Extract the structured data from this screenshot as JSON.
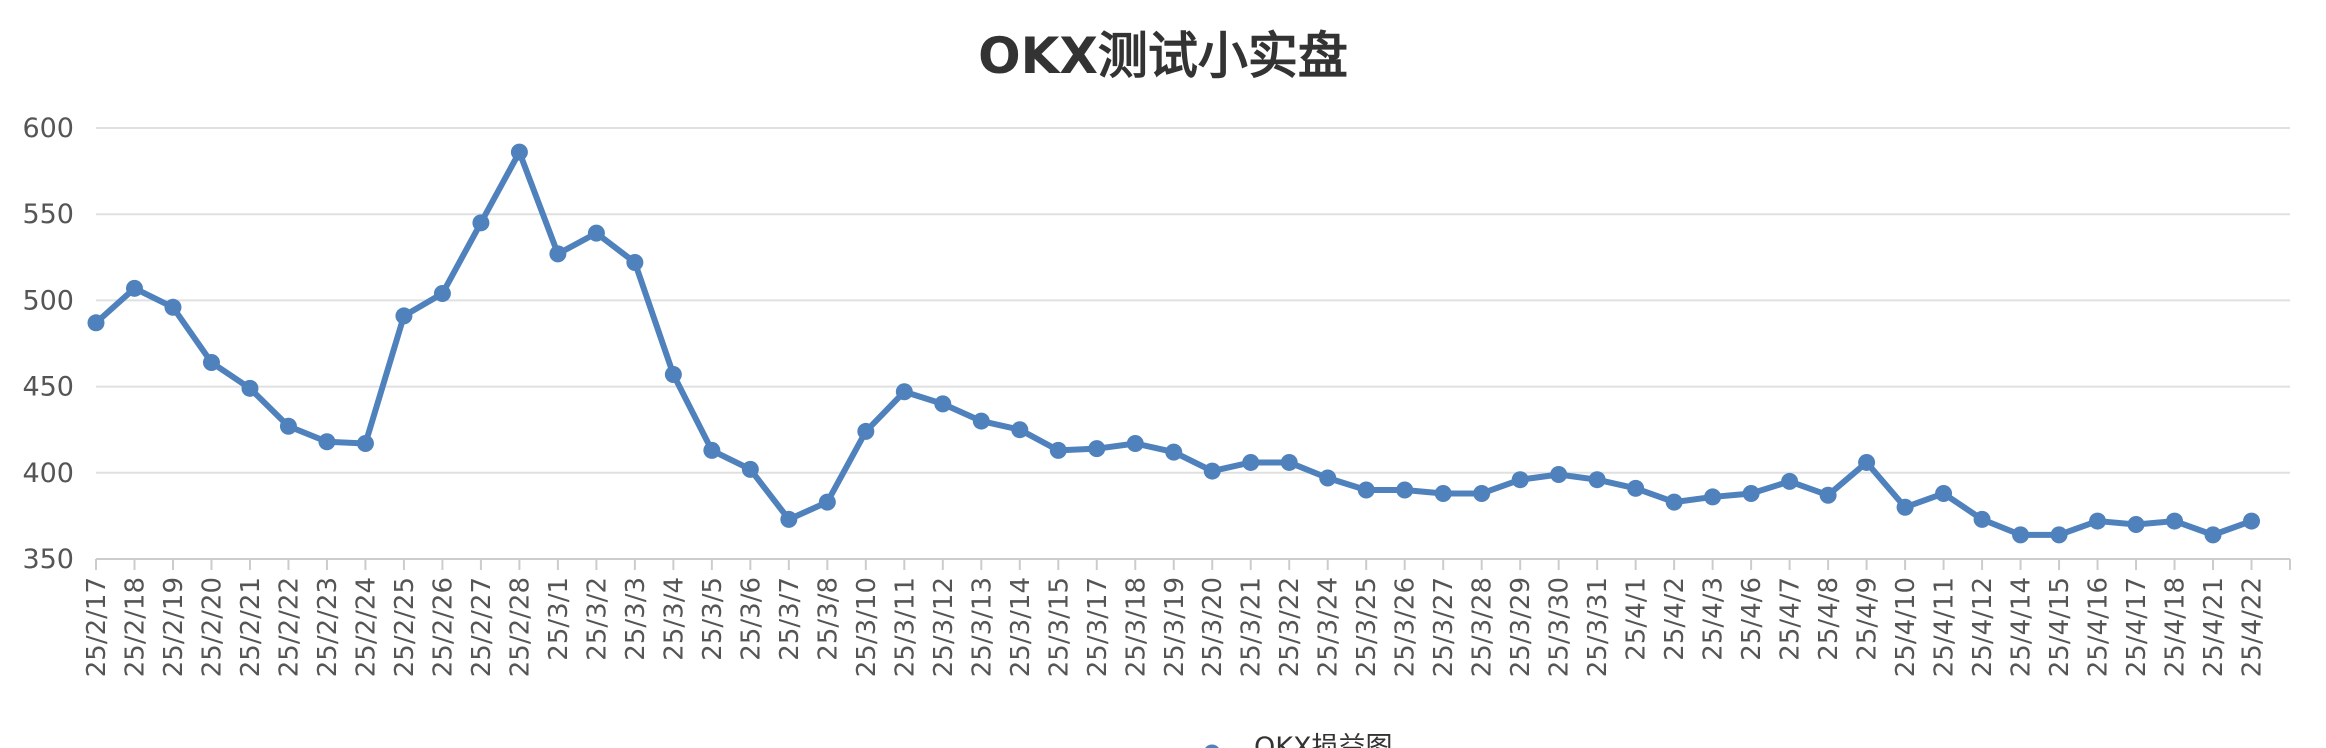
{
  "chart_data": {
    "type": "line",
    "title": "OKX测试小实盘",
    "xlabel": "",
    "ylabel": "",
    "ylim": [
      350,
      600
    ],
    "yticks": [
      350,
      400,
      450,
      500,
      550,
      600
    ],
    "grid": true,
    "legend_position": "bottom",
    "color": "#4f81bd",
    "categories": [
      "25/2/17",
      "25/2/18",
      "25/2/19",
      "25/2/20",
      "25/2/21",
      "25/2/22",
      "25/2/23",
      "25/2/24",
      "25/2/25",
      "25/2/26",
      "25/2/27",
      "25/2/28",
      "25/3/1",
      "25/3/2",
      "25/3/3",
      "25/3/4",
      "25/3/5",
      "25/3/6",
      "25/3/7",
      "25/3/8",
      "25/3/10",
      "25/3/11",
      "25/3/12",
      "25/3/13",
      "25/3/14",
      "25/3/15",
      "25/3/17",
      "25/3/18",
      "25/3/19",
      "25/3/20",
      "25/3/21",
      "25/3/22",
      "25/3/24",
      "25/3/25",
      "25/3/26",
      "25/3/27",
      "25/3/28",
      "25/3/29",
      "25/3/30",
      "25/3/31",
      "25/4/1",
      "25/4/2",
      "25/4/3",
      "25/4/6",
      "25/4/7",
      "25/4/8",
      "25/4/9",
      "25/4/10",
      "25/4/11",
      "25/4/12",
      "25/4/14",
      "25/4/15",
      "25/4/16",
      "25/4/17",
      "25/4/18",
      "25/4/21",
      "25/4/22"
    ],
    "series": [
      {
        "name": "OKX损益图",
        "values": [
          487,
          507,
          496,
          464,
          449,
          427,
          418,
          417,
          491,
          504,
          545,
          586,
          527,
          539,
          522,
          457,
          413,
          402,
          373,
          383,
          424,
          447,
          440,
          430,
          425,
          413,
          414,
          417,
          412,
          401,
          406,
          406,
          397,
          390,
          390,
          388,
          388,
          396,
          399,
          396,
          391,
          383,
          386,
          388,
          395,
          387,
          406,
          380,
          388,
          373,
          364,
          364,
          372,
          370,
          372,
          364,
          372
        ]
      }
    ]
  }
}
